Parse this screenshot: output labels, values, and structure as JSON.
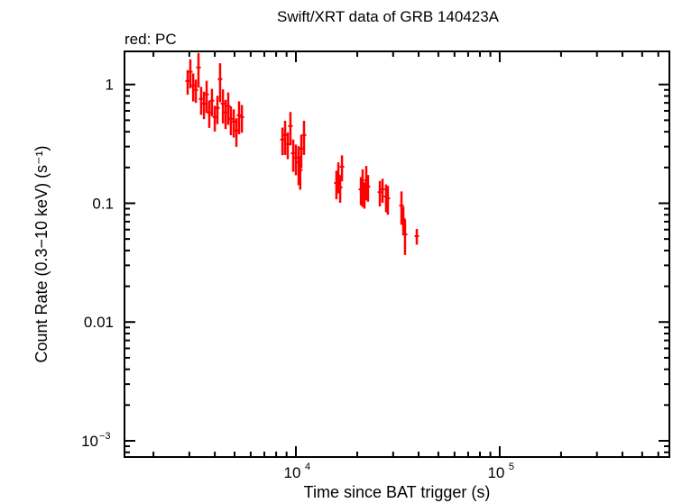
{
  "chart_data": {
    "type": "scatter",
    "title": "Swift/XRT data of GRB 140423A",
    "subtitle": "red: PC",
    "xlabel": "Time since BAT trigger (s)",
    "ylabel": "Count Rate (0.3−10 keV) (s⁻¹)",
    "xscale": "log",
    "yscale": "log",
    "xlim": [
      1442,
      680000
    ],
    "ylim": [
      0.00073,
      1.9
    ],
    "grid": false,
    "x_tick_labels": [
      {
        "value": 10000,
        "base": "10",
        "exp": "4"
      },
      {
        "value": 100000,
        "base": "10",
        "exp": "5"
      }
    ],
    "y_tick_labels": [
      {
        "value": 1,
        "label": "1"
      },
      {
        "value": 0.1,
        "label": "0.1"
      },
      {
        "value": 0.01,
        "label": "0.01"
      },
      {
        "value": 0.001,
        "label": "10",
        "exp": "−3"
      }
    ],
    "series": [
      {
        "name": "PC",
        "color": "#ff0000",
        "columns": [
          "time_s",
          "rate",
          "rate_err"
        ],
        "points": [
          [
            2944,
            1.07,
            0.25
          ],
          [
            3034,
            1.28,
            0.35
          ],
          [
            3133,
            0.98,
            0.26
          ],
          [
            3228,
            0.9,
            0.2
          ],
          [
            3327,
            1.39,
            0.45
          ],
          [
            3428,
            0.755,
            0.2
          ],
          [
            3540,
            0.69,
            0.18
          ],
          [
            3648,
            0.825,
            0.25
          ],
          [
            3758,
            0.581,
            0.15
          ],
          [
            3873,
            0.73,
            0.19
          ],
          [
            3999,
            0.532,
            0.13
          ],
          [
            4121,
            0.634,
            0.17
          ],
          [
            4246,
            1.11,
            0.4
          ],
          [
            4385,
            0.69,
            0.22
          ],
          [
            4519,
            0.581,
            0.16
          ],
          [
            4656,
            0.657,
            0.2
          ],
          [
            4797,
            0.514,
            0.14
          ],
          [
            4955,
            0.488,
            0.13
          ],
          [
            5105,
            0.409,
            0.11
          ],
          [
            5260,
            0.551,
            0.17
          ],
          [
            5433,
            0.532,
            0.14
          ],
          [
            8590,
            0.344,
            0.09
          ],
          [
            8850,
            0.375,
            0.12
          ],
          [
            9120,
            0.315,
            0.08
          ],
          [
            9400,
            0.447,
            0.14
          ],
          [
            9700,
            0.264,
            0.08
          ],
          [
            10000,
            0.242,
            0.07
          ],
          [
            10310,
            0.222,
            0.08
          ],
          [
            10500,
            0.19,
            0.06
          ],
          [
            10630,
            0.288,
            0.09
          ],
          [
            10960,
            0.375,
            0.12
          ],
          [
            15800,
            0.148,
            0.04
          ],
          [
            16150,
            0.171,
            0.05
          ],
          [
            16490,
            0.136,
            0.035
          ],
          [
            16830,
            0.203,
            0.05
          ],
          [
            20840,
            0.131,
            0.035
          ],
          [
            21250,
            0.143,
            0.05
          ],
          [
            21690,
            0.12,
            0.03
          ],
          [
            22140,
            0.156,
            0.05
          ],
          [
            22580,
            0.138,
            0.035
          ],
          [
            25820,
            0.124,
            0.03
          ],
          [
            26620,
            0.131,
            0.03
          ],
          [
            27700,
            0.114,
            0.03
          ],
          [
            28260,
            0.11,
            0.03
          ],
          [
            32960,
            0.0958,
            0.03
          ],
          [
            33650,
            0.0736,
            0.02
          ],
          [
            34300,
            0.0547,
            0.018
          ],
          [
            39180,
            0.0528,
            0.008
          ]
        ]
      }
    ]
  }
}
